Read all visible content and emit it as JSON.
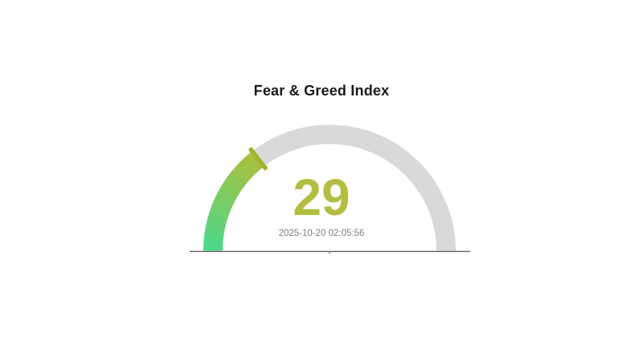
{
  "page": {
    "background": "#ffffff"
  },
  "chart_data": {
    "type": "gauge",
    "title": "Fear & Greed Index",
    "value": 29,
    "min": 0,
    "max": 100,
    "timestamp": "2025-10-20 02:05:56",
    "layout": {
      "start_angle_deg": 180,
      "end_angle_deg": 0,
      "sweep_fraction": 0.29,
      "legend": "none",
      "grid": "off"
    },
    "colors": {
      "track": "#d9d9d9",
      "progress_start": "#4cd88b",
      "progress_end": "#abc03d",
      "marker": "#a4b42e",
      "value_text": "#b2bd41",
      "timestamp_text": "#7e7e7e",
      "title_text": "#1a1a1a",
      "baseline": "#606060"
    }
  }
}
